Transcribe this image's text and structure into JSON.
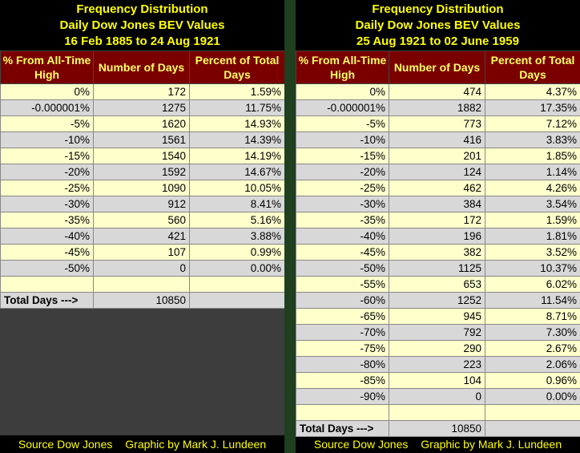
{
  "left": {
    "title_lines": [
      "Frequency Distribution",
      "Daily Dow Jones BEV Values",
      "16 Feb 1885 to 24 Aug 1921"
    ],
    "headers": [
      "% From All-Time High",
      "Number of Days",
      "Percent of Total Days"
    ],
    "rows": [
      [
        "0%",
        "172",
        "1.59%"
      ],
      [
        "-0.000001%",
        "1275",
        "11.75%"
      ],
      [
        "-5%",
        "1620",
        "14.93%"
      ],
      [
        "-10%",
        "1561",
        "14.39%"
      ],
      [
        "-15%",
        "1540",
        "14.19%"
      ],
      [
        "-20%",
        "1592",
        "14.67%"
      ],
      [
        "-25%",
        "1090",
        "10.05%"
      ],
      [
        "-30%",
        "912",
        "8.41%"
      ],
      [
        "-35%",
        "560",
        "5.16%"
      ],
      [
        "-40%",
        "421",
        "3.88%"
      ],
      [
        "-45%",
        "107",
        "0.99%"
      ],
      [
        "-50%",
        "0",
        "0.00%"
      ],
      [
        "",
        "",
        ""
      ]
    ],
    "total": [
      "Total Days --->",
      "10850",
      ""
    ],
    "footer": [
      "Source Dow Jones",
      "Graphic by Mark J. Lundeen"
    ]
  },
  "right": {
    "title_lines": [
      "Frequency Distribution",
      "Daily Dow Jones BEV Values",
      "25 Aug 1921 to 02 June 1959"
    ],
    "headers": [
      "% From All-Time High",
      "Number of Days",
      "Percent of Total Days"
    ],
    "rows": [
      [
        "0%",
        "474",
        "4.37%"
      ],
      [
        "-0.000001%",
        "1882",
        "17.35%"
      ],
      [
        "-5%",
        "773",
        "7.12%"
      ],
      [
        "-10%",
        "416",
        "3.83%"
      ],
      [
        "-15%",
        "201",
        "1.85%"
      ],
      [
        "-20%",
        "124",
        "1.14%"
      ],
      [
        "-25%",
        "462",
        "4.26%"
      ],
      [
        "-30%",
        "384",
        "3.54%"
      ],
      [
        "-35%",
        "172",
        "1.59%"
      ],
      [
        "-40%",
        "196",
        "1.81%"
      ],
      [
        "-45%",
        "382",
        "3.52%"
      ],
      [
        "-50%",
        "1125",
        "10.37%"
      ],
      [
        "-55%",
        "653",
        "6.02%"
      ],
      [
        "-60%",
        "1252",
        "11.54%"
      ],
      [
        "-65%",
        "945",
        "8.71%"
      ],
      [
        "-70%",
        "792",
        "7.30%"
      ],
      [
        "-75%",
        "290",
        "2.67%"
      ],
      [
        "-80%",
        "223",
        "2.06%"
      ],
      [
        "-85%",
        "104",
        "0.96%"
      ],
      [
        "-90%",
        "0",
        "0.00%"
      ],
      [
        "",
        "",
        ""
      ]
    ],
    "total": [
      "Total Days --->",
      "10850",
      ""
    ],
    "footer": [
      "Source Dow Jones",
      "Graphic by Mark J. Lundeen"
    ]
  },
  "colors": {
    "header_bg": "#7a0000",
    "header_text": "#ffff66",
    "title_text": "#ffff00",
    "row_light": "#ffffcc",
    "row_gray": "#d8d8d8",
    "filler": "#3d3d3d",
    "divider": "#1f3f1f"
  },
  "chart_data": [
    {
      "type": "table",
      "title": "Frequency Distribution Daily Dow Jones BEV Values 16 Feb 1885 to 24 Aug 1921",
      "columns": [
        "% From All-Time High",
        "Number of Days",
        "Percent of Total Days"
      ],
      "rows": [
        [
          "0%",
          172,
          1.59
        ],
        [
          "-0.000001%",
          1275,
          11.75
        ],
        [
          "-5%",
          1620,
          14.93
        ],
        [
          "-10%",
          1561,
          14.39
        ],
        [
          "-15%",
          1540,
          14.19
        ],
        [
          "-20%",
          1592,
          14.67
        ],
        [
          "-25%",
          1090,
          10.05
        ],
        [
          "-30%",
          912,
          8.41
        ],
        [
          "-35%",
          560,
          5.16
        ],
        [
          "-40%",
          421,
          3.88
        ],
        [
          "-45%",
          107,
          0.99
        ],
        [
          "-50%",
          0,
          0.0
        ]
      ],
      "total_days": 10850
    },
    {
      "type": "table",
      "title": "Frequency Distribution Daily Dow Jones BEV Values 25 Aug 1921 to 02 June 1959",
      "columns": [
        "% From All-Time High",
        "Number of Days",
        "Percent of Total Days"
      ],
      "rows": [
        [
          "0%",
          474,
          4.37
        ],
        [
          "-0.000001%",
          1882,
          17.35
        ],
        [
          "-5%",
          773,
          7.12
        ],
        [
          "-10%",
          416,
          3.83
        ],
        [
          "-15%",
          201,
          1.85
        ],
        [
          "-20%",
          124,
          1.14
        ],
        [
          "-25%",
          462,
          4.26
        ],
        [
          "-30%",
          384,
          3.54
        ],
        [
          "-35%",
          172,
          1.59
        ],
        [
          "-40%",
          196,
          1.81
        ],
        [
          "-45%",
          382,
          3.52
        ],
        [
          "-50%",
          1125,
          10.37
        ],
        [
          "-55%",
          653,
          6.02
        ],
        [
          "-60%",
          1252,
          11.54
        ],
        [
          "-65%",
          945,
          8.71
        ],
        [
          "-70%",
          792,
          7.3
        ],
        [
          "-75%",
          290,
          2.67
        ],
        [
          "-80%",
          223,
          2.06
        ],
        [
          "-85%",
          104,
          0.96
        ],
        [
          "-90%",
          0,
          0.0
        ]
      ],
      "total_days": 10850
    }
  ]
}
